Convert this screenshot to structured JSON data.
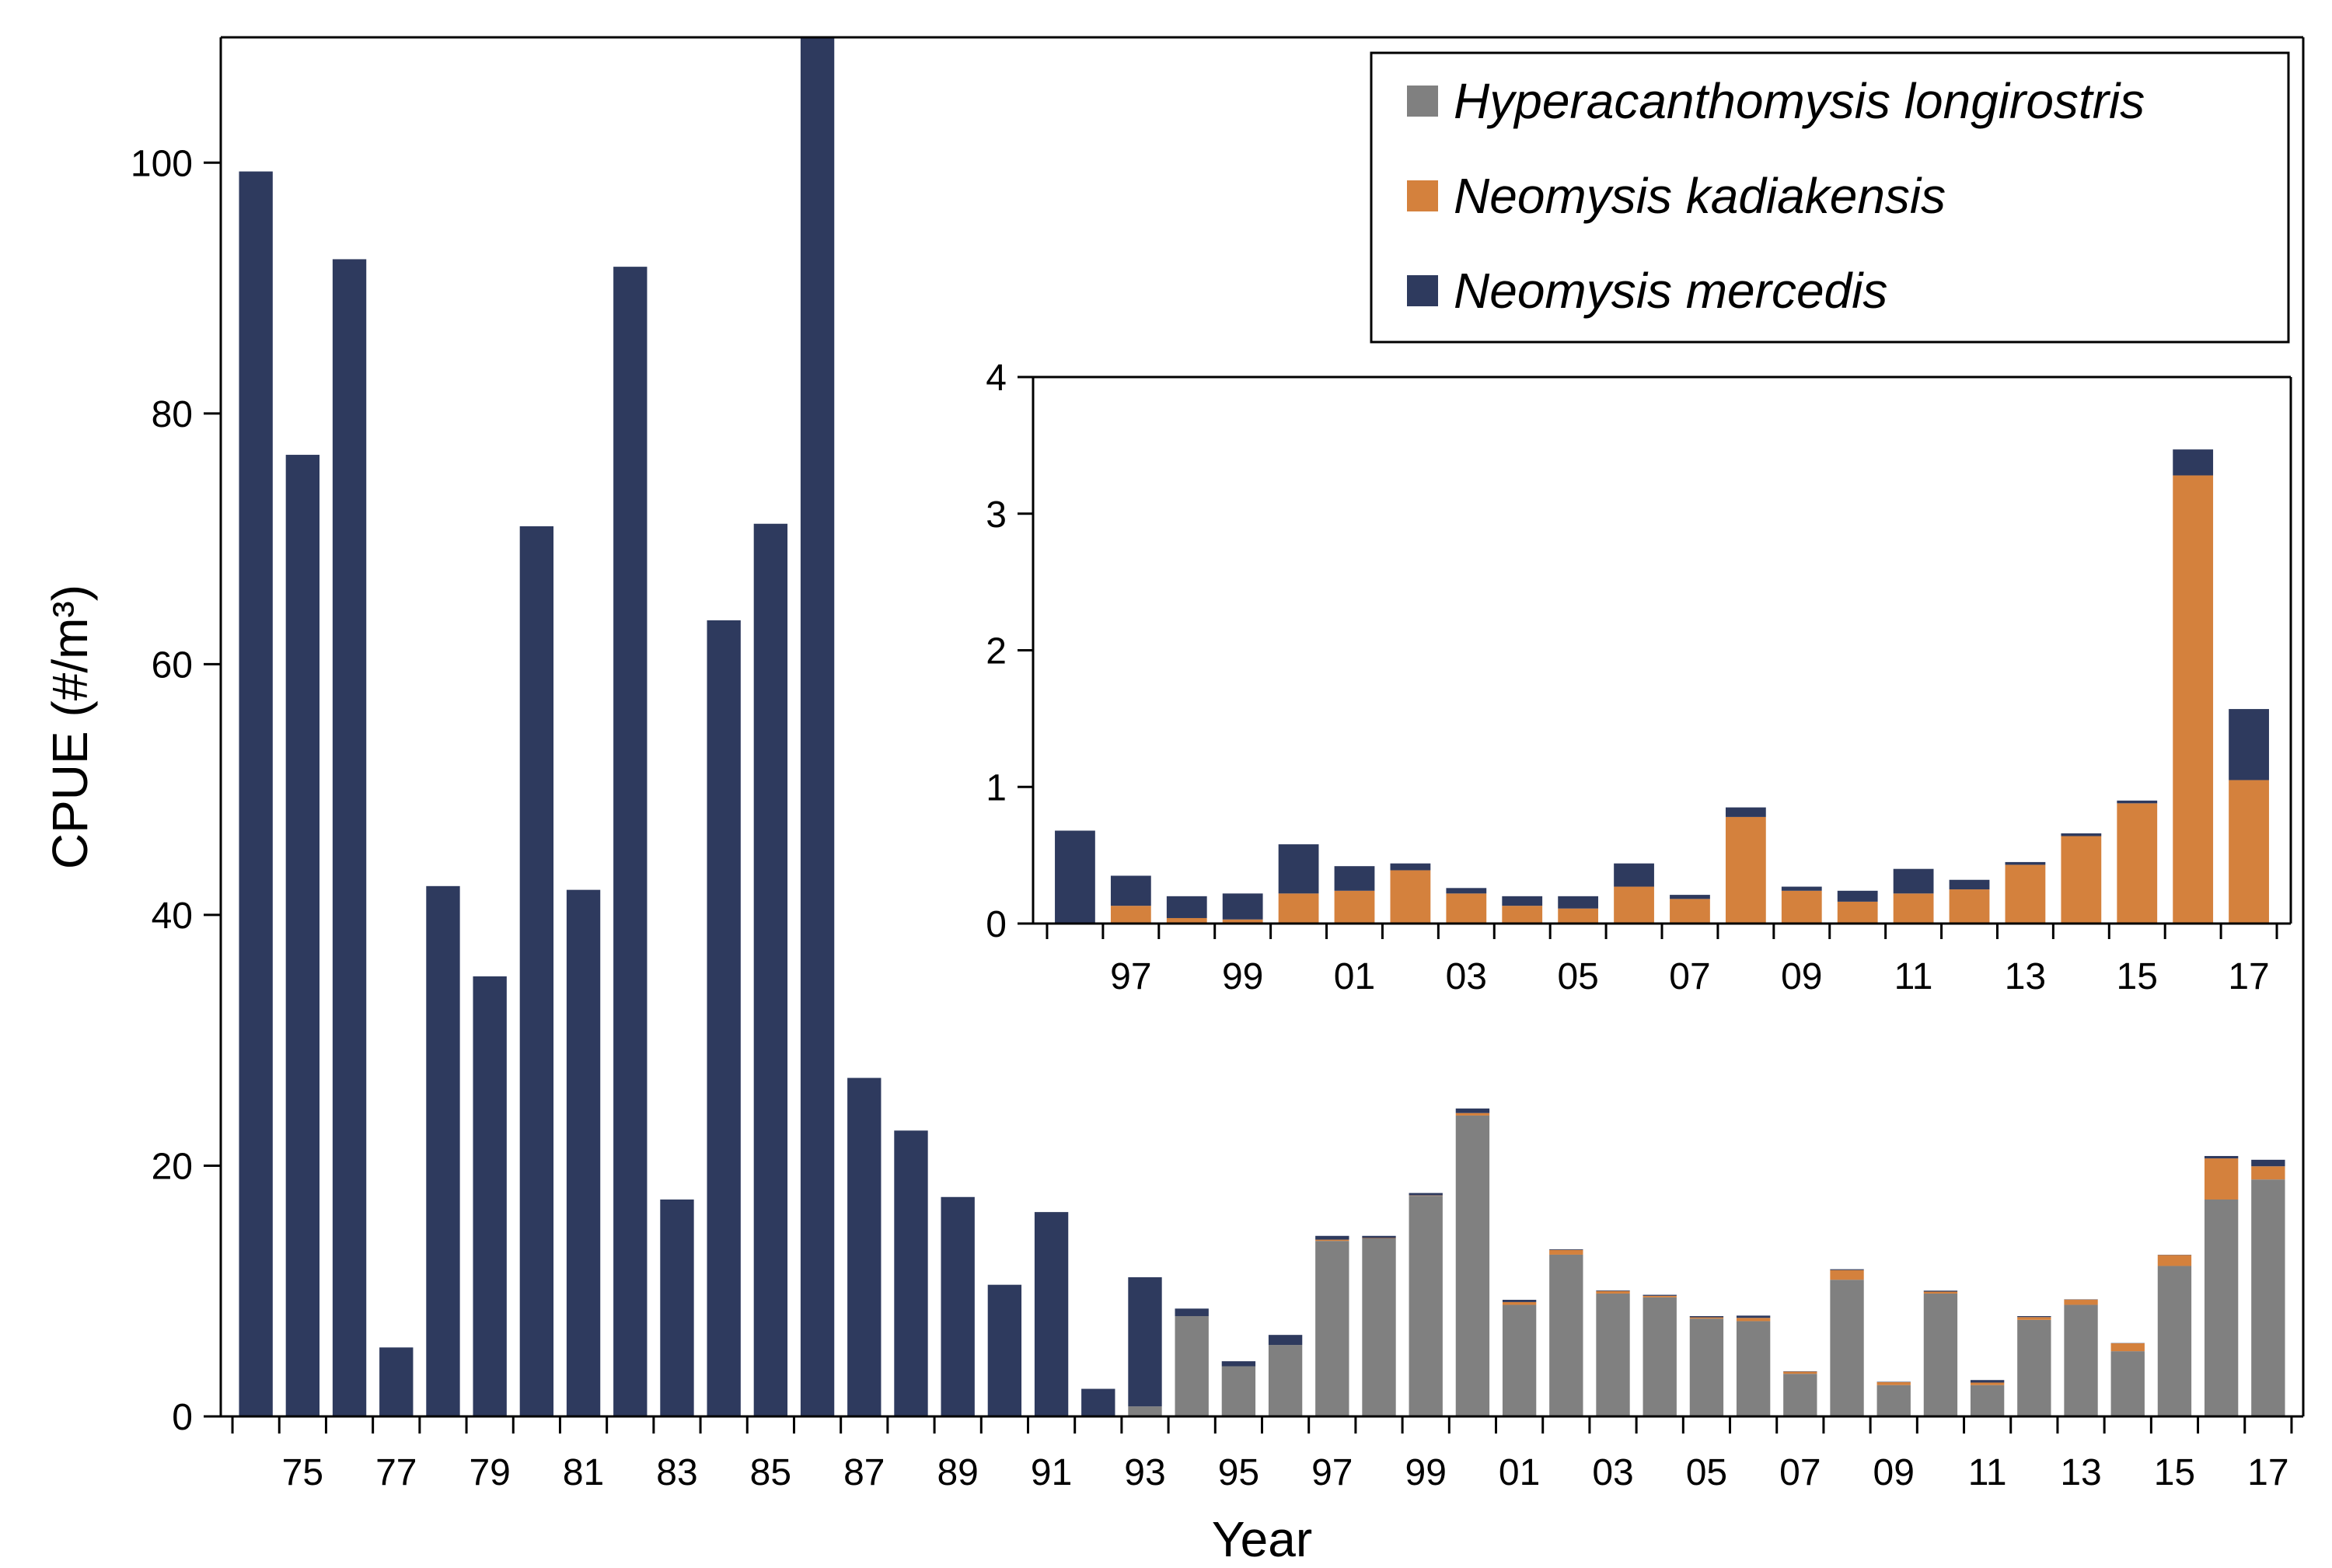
{
  "chart_data": [
    {
      "id": "main",
      "type": "bar",
      "stacked": true,
      "xlabel": "Year",
      "ylabel": "CPUE (#/m³)",
      "ylim": [
        0,
        110
      ],
      "yticks": [
        0,
        20,
        40,
        60,
        80,
        100
      ],
      "legend": {
        "placement": "top-right"
      },
      "categories": [
        "74",
        "75",
        "76",
        "77",
        "78",
        "79",
        "80",
        "81",
        "82",
        "83",
        "84",
        "85",
        "86",
        "87",
        "88",
        "89",
        "90",
        "91",
        "92",
        "93",
        "94",
        "95",
        "96",
        "97",
        "98",
        "99",
        "00",
        "01",
        "02",
        "03",
        "04",
        "05",
        "06",
        "07",
        "08",
        "09",
        "10",
        "11",
        "12",
        "13",
        "14",
        "15",
        "16",
        "17"
      ],
      "tick_labels": [
        "75",
        "77",
        "79",
        "81",
        "83",
        "85",
        "87",
        "89",
        "91",
        "93",
        "95",
        "97",
        "99",
        "01",
        "03",
        "05",
        "07",
        "09",
        "11",
        "13",
        "15",
        "17"
      ],
      "series": [
        {
          "name": "Hyperacanthomysis longirostris",
          "color": "#808080",
          "values": [
            0,
            0,
            0,
            0,
            0,
            0,
            0,
            0,
            0,
            0,
            0,
            0,
            0,
            0,
            0,
            0,
            0,
            0,
            0,
            0.8,
            8.0,
            4.0,
            5.7,
            14.0,
            14.2,
            17.6,
            24.0,
            8.9,
            12.9,
            9.8,
            9.5,
            7.8,
            7.6,
            3.4,
            10.9,
            2.5,
            9.8,
            2.5,
            7.7,
            8.9,
            5.2,
            12.0,
            17.3,
            18.9
          ]
        },
        {
          "name": "Neomysis kadiakensis",
          "color": "#d4813d",
          "values": [
            0,
            0,
            0,
            0,
            0,
            0,
            0,
            0,
            0,
            0,
            0,
            0,
            0,
            0,
            0,
            0,
            0,
            0,
            0,
            0,
            0,
            0,
            0,
            0.1,
            0.03,
            0.03,
            0.2,
            0.22,
            0.38,
            0.2,
            0.12,
            0.1,
            0.26,
            0.17,
            0.77,
            0.23,
            0.15,
            0.2,
            0.22,
            0.42,
            0.63,
            0.87,
            3.28,
            1.05
          ]
        },
        {
          "name": "Neomysis mercedis",
          "color": "#2e3a5e",
          "values": [
            99.3,
            76.7,
            92.3,
            5.5,
            42.3,
            35.1,
            71.0,
            42.0,
            91.7,
            17.3,
            63.5,
            71.2,
            110,
            27.0,
            22.8,
            17.5,
            10.5,
            16.3,
            2.2,
            10.3,
            0.6,
            0.4,
            0.8,
            0.3,
            0.17,
            0.19,
            0.36,
            0.18,
            0.05,
            0.05,
            0.08,
            0.1,
            0.18,
            0.03,
            0.07,
            0.03,
            0.08,
            0.2,
            0.08,
            0.02,
            0.02,
            0.02,
            0.19,
            0.52
          ]
        }
      ]
    },
    {
      "id": "inset",
      "type": "bar",
      "stacked": true,
      "xlabel": "",
      "ylabel": "",
      "ylim": [
        0,
        4
      ],
      "yticks": [
        0,
        1,
        2,
        3,
        4
      ],
      "categories": [
        "96",
        "97",
        "98",
        "99",
        "00",
        "01",
        "02",
        "03",
        "04",
        "05",
        "06",
        "07",
        "08",
        "09",
        "10",
        "11",
        "12",
        "13",
        "14",
        "15",
        "16",
        "17"
      ],
      "tick_labels": [
        "97",
        "99",
        "01",
        "03",
        "05",
        "07",
        "09",
        "11",
        "13",
        "15",
        "17"
      ],
      "series": [
        {
          "name": "Neomysis kadiakensis",
          "color": "#d4813d",
          "values": [
            0,
            0.13,
            0.04,
            0.03,
            0.22,
            0.24,
            0.39,
            0.22,
            0.13,
            0.11,
            0.27,
            0.18,
            0.78,
            0.24,
            0.16,
            0.22,
            0.25,
            0.43,
            0.64,
            0.88,
            3.28,
            1.05
          ]
        },
        {
          "name": "Neomysis mercedis",
          "color": "#2e3a5e",
          "values": [
            0.68,
            0.22,
            0.16,
            0.19,
            0.36,
            0.18,
            0.05,
            0.04,
            0.07,
            0.09,
            0.17,
            0.03,
            0.07,
            0.03,
            0.08,
            0.18,
            0.07,
            0.02,
            0.02,
            0.02,
            0.19,
            0.52
          ]
        }
      ]
    }
  ]
}
